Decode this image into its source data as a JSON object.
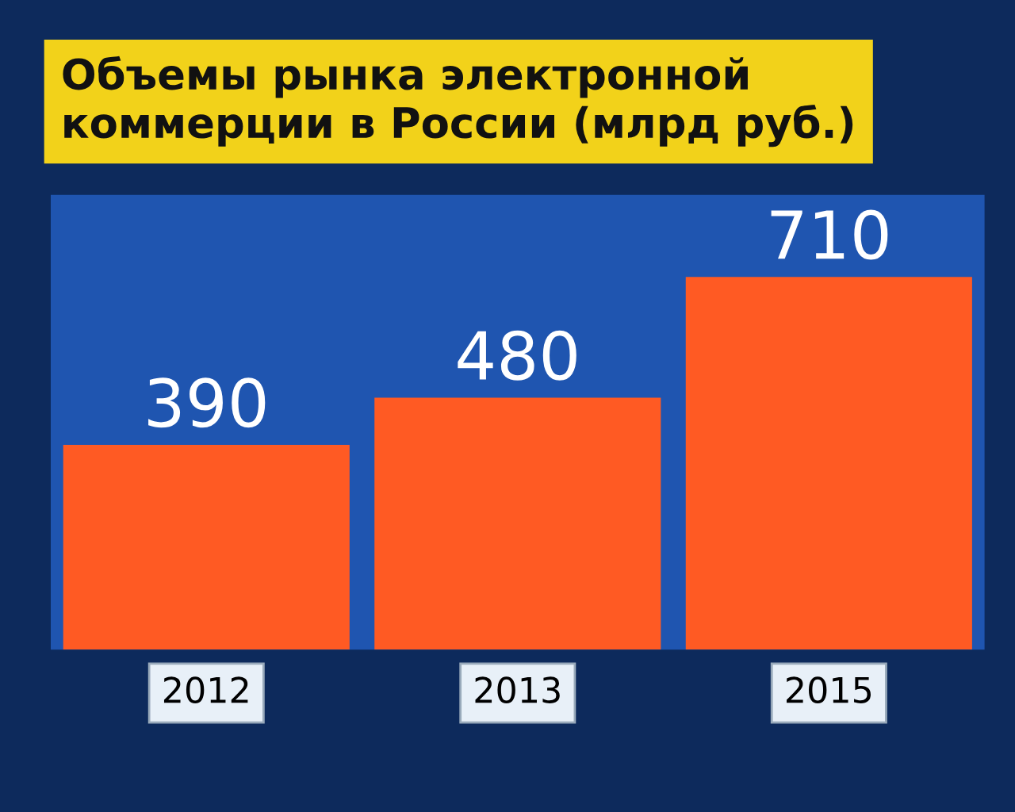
{
  "chart_data": {
    "type": "bar",
    "title": "Объемы рынка электронной\nкоммерции в России (млрд руб.)",
    "categories": [
      "2012",
      "2013",
      "2015"
    ],
    "values": [
      390,
      480,
      710
    ],
    "color": "#ff5a23",
    "data_labels": true,
    "grid": false
  }
}
